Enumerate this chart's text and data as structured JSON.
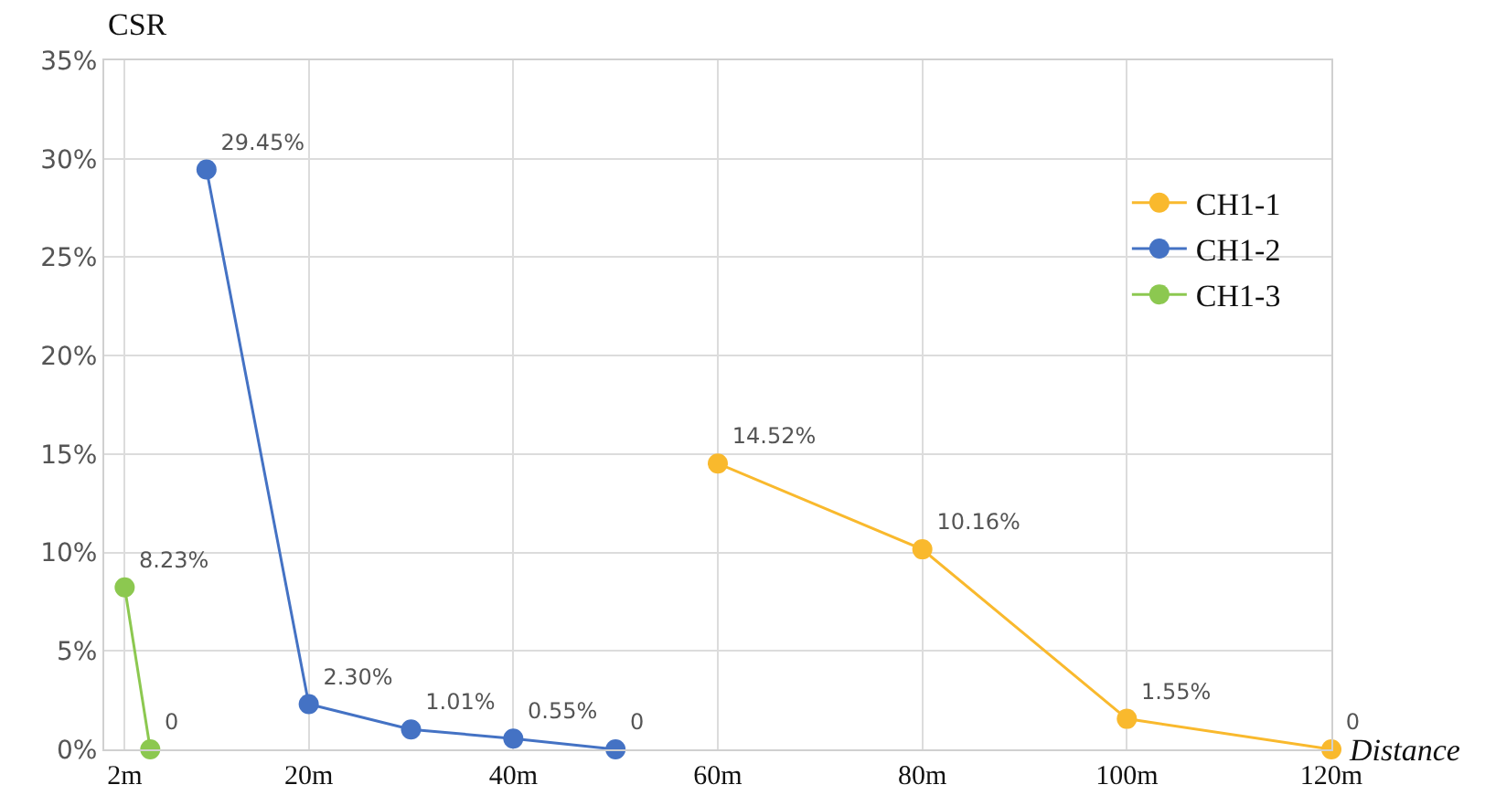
{
  "chart_data": {
    "type": "line",
    "xlabel": "Distance",
    "ylabel": "CSR",
    "xlim": [
      0,
      120
    ],
    "xticks": [
      {
        "value": 2,
        "label": "2m"
      },
      {
        "value": 20,
        "label": "20m"
      },
      {
        "value": 40,
        "label": "40m"
      },
      {
        "value": 60,
        "label": "60m"
      },
      {
        "value": 80,
        "label": "80m"
      },
      {
        "value": 100,
        "label": "100m"
      },
      {
        "value": 120,
        "label": "120m"
      }
    ],
    "ylim": [
      0,
      35
    ],
    "yticks": [
      {
        "value": 0,
        "label": "0%"
      },
      {
        "value": 5,
        "label": "5%"
      },
      {
        "value": 10,
        "label": "10%"
      },
      {
        "value": 15,
        "label": "15%"
      },
      {
        "value": 20,
        "label": "20%"
      },
      {
        "value": 25,
        "label": "25%"
      },
      {
        "value": 30,
        "label": "30%"
      },
      {
        "value": 35,
        "label": "35%"
      }
    ],
    "grid": true,
    "legend": "top right",
    "marker": "circle",
    "line_style": "solid",
    "series": [
      {
        "name": "CH1-1",
        "color": "#f9b92d",
        "x": [
          60,
          80,
          100,
          120
        ],
        "values": [
          14.52,
          10.16,
          1.55,
          0
        ],
        "value_labels": [
          "14.52%",
          "10.16%",
          "1.55%",
          "0"
        ]
      },
      {
        "name": "CH1-2",
        "color": "#4472c4",
        "x": [
          10,
          20,
          30,
          40,
          50
        ],
        "values": [
          29.45,
          2.3,
          1.01,
          0.55,
          0
        ],
        "value_labels": [
          "29.45%",
          "2.30%",
          "1.01%",
          "0.55%",
          "0"
        ]
      },
      {
        "name": "CH1-3",
        "color": "#8cc850",
        "x": [
          2,
          4.5
        ],
        "values": [
          8.23,
          0
        ],
        "value_labels": [
          "8.23%",
          "0"
        ]
      }
    ]
  }
}
